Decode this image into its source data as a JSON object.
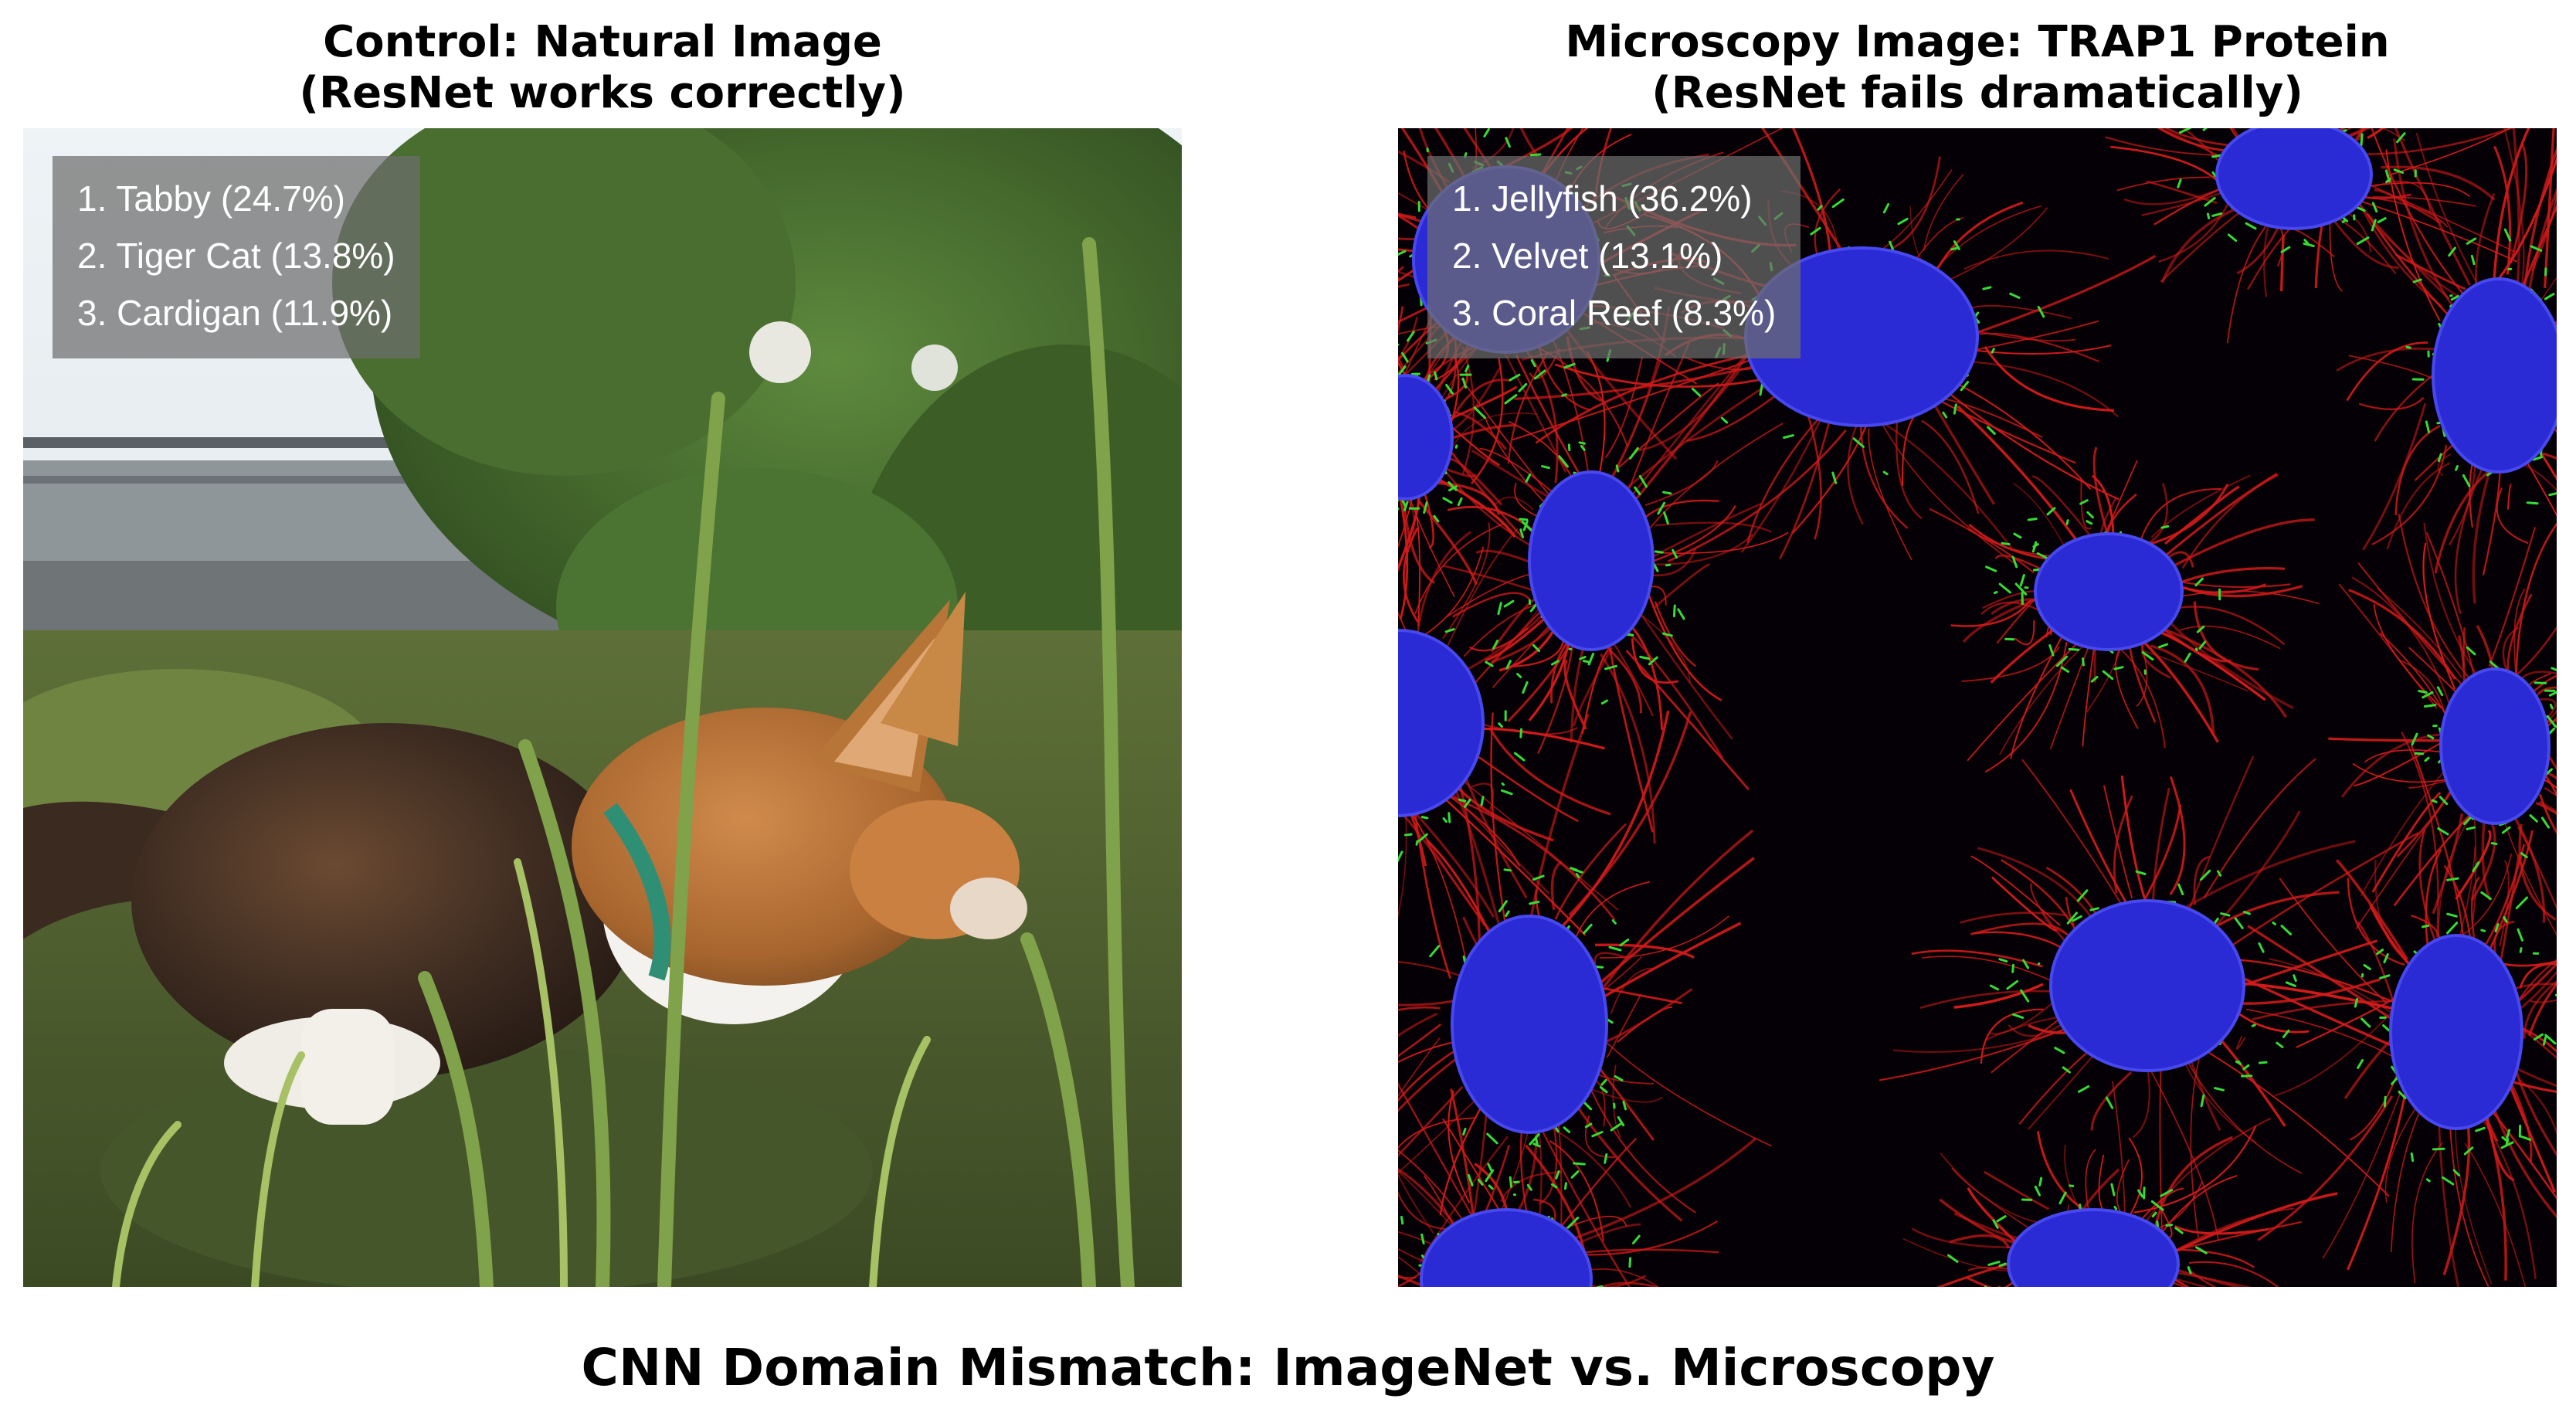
{
  "left_panel": {
    "title": "Control: Natural Image\n(ResNet works correctly)",
    "predictions": [
      "1. Tabby (24.7%)",
      "2. Tiger Cat (13.8%)",
      "3. Cardigan (11.9%)"
    ],
    "image": "photo of calico cat in grass"
  },
  "right_panel": {
    "title": "Microscopy Image: TRAP1 Protein\n(ResNet fails dramatically)",
    "predictions": [
      "1. Jellyfish (36.2%)",
      "2. Velvet (13.1%)",
      "3. Coral Reef (8.3%)"
    ],
    "image": "fluorescence microscopy of cells with blue nuclei, red filaments and green mitochondria"
  },
  "main_title": "CNN Domain Mismatch: ImageNet vs. Microscopy",
  "colors": {
    "nucleus": "#2b2bd6",
    "filament": "#d41a1a",
    "mitochondria": "#33dd33",
    "grass": "#4e6a2e",
    "prediction_box": "#6e6e6e"
  }
}
